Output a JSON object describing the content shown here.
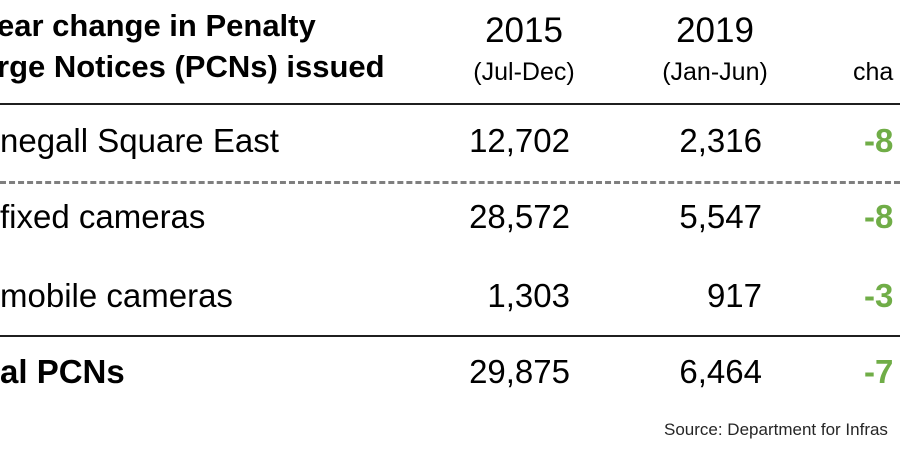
{
  "colors": {
    "change_green": "#70AD47",
    "rule_dark": "#1f1f1f",
    "rule_dashed_gray": "#7f7f7f",
    "source_text": "#262626",
    "background": "#ffffff"
  },
  "header": {
    "title_line1": "ear change in Penalty",
    "title_line2": "rge Notices (PCNs) issued",
    "col_2015_year": "2015",
    "col_2015_period": "(Jul-Dec)",
    "col_2019_year": "2019",
    "col_2019_period": "(Jan-Jun)",
    "change_label": "cha"
  },
  "rows": [
    {
      "label": "negall Square East",
      "v2015": "12,702",
      "v2019": "2,316",
      "change": "-8"
    },
    {
      "label": "fixed cameras",
      "v2015": "28,572",
      "v2019": "5,547",
      "change": "-8"
    },
    {
      "label": "mobile cameras",
      "v2015": "1,303",
      "v2019": "917",
      "change": "-3"
    },
    {
      "label": "al PCNs",
      "v2015": "29,875",
      "v2019": "6,464",
      "change": "-7"
    }
  ],
  "source": "Source: Department for Infras",
  "chart_data": {
    "type": "table",
    "title": "ear change in Penalty rge Notices (PCNs) issued",
    "columns": [
      "",
      "2015 (Jul-Dec)",
      "2019 (Jan-Jun)",
      "cha"
    ],
    "rows": [
      [
        "negall Square East",
        12702,
        2316,
        "-8"
      ],
      [
        "fixed cameras",
        28572,
        5547,
        "-8"
      ],
      [
        "mobile cameras",
        1303,
        917,
        "-3"
      ],
      [
        "al PCNs",
        29875,
        6464,
        "-7"
      ]
    ],
    "layout_hints": {
      "change_column_color": "#70AD47",
      "total_row_bold": true,
      "divider_after_row": 1,
      "divider_style": "dashed",
      "header_and_total_rules": "solid"
    },
    "notes": "Source: Department for Infras"
  }
}
